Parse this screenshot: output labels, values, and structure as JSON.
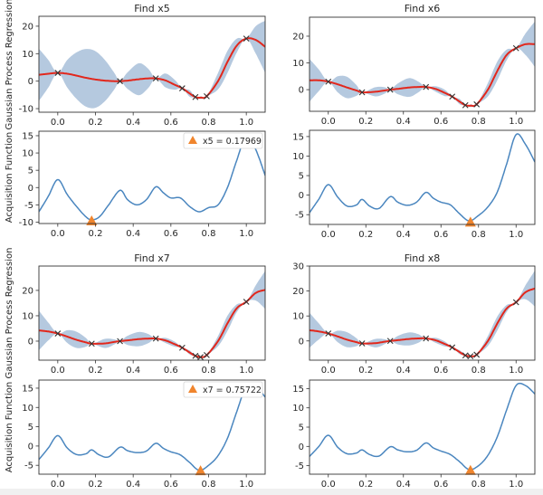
{
  "colors": {
    "band": "#b5c9df",
    "mean": "#e2271c",
    "acq_line": "#4a86bf",
    "marker": "#f0852d",
    "obs": "#333333"
  },
  "chart_data": [
    {
      "type": "line",
      "title": "Find x5",
      "gpr": {
        "ylabel": "Gaussian Process Regression",
        "xlim": [
          -0.1,
          1.1
        ],
        "ylim": [
          -11.3,
          23.6
        ],
        "yticks": [
          "-10",
          "0",
          "10",
          "20"
        ],
        "ytick_values": [
          -10,
          0,
          10,
          20
        ],
        "xticks": [
          "0.0",
          "0.2",
          "0.4",
          "0.6",
          "0.8",
          "1.0"
        ],
        "xtick_values": [
          0,
          0.2,
          0.4,
          0.6,
          0.8,
          1.0
        ],
        "x": [
          -0.1,
          -0.05,
          0,
          0.05,
          0.1,
          0.15,
          0.2,
          0.25,
          0.3,
          0.33,
          0.37,
          0.43,
          0.48,
          0.52,
          0.57,
          0.62,
          0.66,
          0.7,
          0.73,
          0.76,
          0.79,
          0.85,
          0.9,
          0.95,
          1.0,
          1.05,
          1.1
        ],
        "mean": [
          2.3,
          2.7,
          3,
          2.7,
          2,
          1.2,
          0.6,
          0.2,
          0,
          0,
          0.2,
          0.7,
          1,
          1,
          0.3,
          -1.3,
          -2.6,
          -4.5,
          -5.8,
          -6,
          -5.5,
          0,
          7,
          13,
          15.5,
          15,
          12.5
        ],
        "std": [
          9.5,
          5,
          0,
          5,
          8.5,
          10.5,
          10.3,
          7.5,
          3,
          0,
          3,
          5.8,
          3.5,
          0,
          2.5,
          1.8,
          0,
          1.2,
          0,
          0.5,
          0,
          3,
          4,
          2.5,
          0,
          5,
          9.5
        ],
        "observations": {
          "x": [
            0,
            0.33,
            0.52,
            0.66,
            0.73,
            0.79,
            1.0
          ],
          "y": [
            3,
            0,
            1,
            -2.6,
            -5.8,
            -5.5,
            15.5
          ]
        }
      },
      "acq": {
        "ylabel": "Acquisition Function",
        "xlim": [
          -0.1,
          1.1
        ],
        "ylim": [
          -10.4,
          16.3
        ],
        "yticks": [
          "-10",
          "-5",
          "0",
          "5",
          "10",
          "15"
        ],
        "ytick_values": [
          -10,
          -5,
          0,
          5,
          10,
          15
        ],
        "xticks": [
          "0.0",
          "0.2",
          "0.4",
          "0.6",
          "0.8",
          "1.0"
        ],
        "xtick_values": [
          0,
          0.2,
          0.4,
          0.6,
          0.8,
          1.0
        ],
        "x": [
          -0.1,
          -0.05,
          0,
          0.05,
          0.1,
          0.15,
          0.18,
          0.22,
          0.27,
          0.33,
          0.37,
          0.42,
          0.47,
          0.52,
          0.56,
          0.6,
          0.65,
          0.7,
          0.75,
          0.8,
          0.85,
          0.9,
          0.95,
          1.0,
          1.05,
          1.1
        ],
        "y": [
          -7,
          -2.5,
          2.3,
          -2,
          -5.5,
          -8.5,
          -9.3,
          -8.5,
          -5,
          -0.8,
          -3.5,
          -5,
          -3.5,
          0.2,
          -1.5,
          -3,
          -3,
          -5.5,
          -7,
          -5.8,
          -5,
          0,
          8,
          15,
          11,
          3.5
        ],
        "next": {
          "x": 0.17969,
          "y": -9.6
        },
        "legend": "x5 = 0.17969"
      }
    },
    {
      "type": "line",
      "title": "Find x6",
      "gpr": {
        "ylabel": "",
        "xlim": [
          -0.1,
          1.1
        ],
        "ylim": [
          -8.1,
          27.1
        ],
        "yticks": [
          "0",
          "10",
          "20"
        ],
        "ytick_values": [
          0,
          10,
          20
        ],
        "xticks": [
          "0.0",
          "0.2",
          "0.4",
          "0.6",
          "0.8",
          "1.0"
        ],
        "xtick_values": [
          0,
          0.2,
          0.4,
          0.6,
          0.8,
          1.0
        ],
        "x": [
          -0.1,
          -0.05,
          0,
          0.05,
          0.1,
          0.15,
          0.18,
          0.25,
          0.3,
          0.33,
          0.37,
          0.43,
          0.48,
          0.52,
          0.57,
          0.62,
          0.66,
          0.7,
          0.73,
          0.76,
          0.79,
          0.85,
          0.9,
          0.95,
          1.0,
          1.05,
          1.1
        ],
        "mean": [
          3.5,
          3.5,
          3,
          2,
          0.8,
          -0.3,
          -1,
          -0.8,
          -0.3,
          0,
          0.3,
          0.8,
          1,
          1,
          0.3,
          -1.2,
          -2.6,
          -4.5,
          -5.8,
          -6,
          -5.5,
          0,
          7,
          13,
          15.5,
          17,
          17
        ],
        "std": [
          8,
          4,
          0,
          3,
          4,
          2,
          0,
          1.7,
          1.2,
          0,
          2,
          3.5,
          2,
          0,
          1,
          1.2,
          0,
          1,
          0,
          0.5,
          0,
          2.5,
          3.5,
          2,
          0,
          4,
          8.5
        ],
        "observations": {
          "x": [
            0,
            0.18,
            0.33,
            0.52,
            0.66,
            0.73,
            0.79,
            1.0
          ],
          "y": [
            3,
            -1,
            0,
            1,
            -2.6,
            -5.8,
            -5.5,
            15.5
          ]
        }
      },
      "acq": {
        "ylabel": "",
        "xlim": [
          -0.1,
          1.1
        ],
        "ylim": [
          -7.5,
          16.6
        ],
        "yticks": [
          "-5",
          "0",
          "5",
          "10",
          "15"
        ],
        "ytick_values": [
          -5,
          0,
          5,
          10,
          15
        ],
        "xticks": [
          "0.0",
          "0.2",
          "0.4",
          "0.6",
          "0.8",
          "1.0"
        ],
        "xtick_values": [
          0,
          0.2,
          0.4,
          0.6,
          0.8,
          1.0
        ],
        "x": [
          -0.1,
          -0.05,
          0,
          0.05,
          0.1,
          0.15,
          0.18,
          0.22,
          0.27,
          0.33,
          0.37,
          0.42,
          0.47,
          0.52,
          0.56,
          0.6,
          0.65,
          0.7,
          0.75,
          0.8,
          0.85,
          0.9,
          0.95,
          1.0,
          1.05,
          1.1
        ],
        "y": [
          -4.5,
          -1,
          2.7,
          -0.5,
          -2.8,
          -2.5,
          -1.1,
          -2.8,
          -3.4,
          -0.4,
          -1.8,
          -2.6,
          -1.8,
          0.7,
          -0.8,
          -1.8,
          -2.5,
          -4.8,
          -6.6,
          -5.2,
          -3,
          0.8,
          8,
          15.5,
          13,
          8.5
        ],
        "next": {
          "x": 0.757,
          "y": -6.9
        },
        "legend": ""
      }
    },
    {
      "type": "line",
      "title": "Find x7",
      "gpr": {
        "ylabel": "Gaussian Process Regression",
        "xlim": [
          -0.1,
          1.1
        ],
        "ylim": [
          -7.5,
          29.6
        ],
        "yticks": [
          "0",
          "10",
          "20"
        ],
        "ytick_values": [
          0,
          10,
          20
        ],
        "xticks": [
          "0.0",
          "0.2",
          "0.4",
          "0.6",
          "0.8",
          "1.0"
        ],
        "xtick_values": [
          0,
          0.2,
          0.4,
          0.6,
          0.8,
          1.0
        ],
        "x": [
          -0.1,
          -0.05,
          0,
          0.05,
          0.1,
          0.15,
          0.18,
          0.25,
          0.3,
          0.33,
          0.37,
          0.43,
          0.48,
          0.52,
          0.57,
          0.62,
          0.66,
          0.7,
          0.73,
          0.76,
          0.79,
          0.85,
          0.9,
          0.95,
          1.0,
          1.05,
          1.1
        ],
        "mean": [
          4.2,
          3.8,
          3,
          1.8,
          0.5,
          -0.5,
          -1,
          -0.9,
          -0.3,
          0,
          0.3,
          0.8,
          1,
          1,
          0.3,
          -1.2,
          -2.6,
          -4.5,
          -5.8,
          -6.3,
          -5.5,
          0,
          7,
          13,
          15.5,
          19,
          20.2
        ],
        "std": [
          7.8,
          3.5,
          0,
          2.5,
          3.2,
          1.7,
          0,
          1.8,
          1,
          0,
          1.8,
          2.8,
          1.8,
          0,
          1,
          1,
          0,
          0.8,
          0,
          0.3,
          0,
          2,
          3,
          1.5,
          0,
          3,
          7.5
        ],
        "observations": {
          "x": [
            0,
            0.18,
            0.33,
            0.52,
            0.66,
            0.73,
            0.757,
            0.79,
            1.0
          ],
          "y": [
            3,
            -1,
            0,
            1,
            -2.6,
            -5.8,
            -6.3,
            -5.5,
            15.5
          ]
        }
      },
      "acq": {
        "ylabel": "Acquisition Function",
        "xlim": [
          -0.1,
          1.1
        ],
        "ylim": [
          -7.3,
          17.1
        ],
        "yticks": [
          "-5",
          "0",
          "5",
          "10",
          "15"
        ],
        "ytick_values": [
          -5,
          0,
          5,
          10,
          15
        ],
        "xticks": [
          "0.0",
          "0.2",
          "0.4",
          "0.6",
          "0.8",
          "1.0"
        ],
        "xtick_values": [
          0,
          0.2,
          0.4,
          0.6,
          0.8,
          1.0
        ],
        "x": [
          -0.1,
          -0.05,
          0,
          0.05,
          0.1,
          0.15,
          0.18,
          0.22,
          0.27,
          0.33,
          0.37,
          0.42,
          0.47,
          0.52,
          0.56,
          0.6,
          0.65,
          0.7,
          0.75,
          0.8,
          0.85,
          0.9,
          0.95,
          1.0,
          1.05,
          1.1
        ],
        "y": [
          -3.5,
          -0.5,
          2.7,
          -0.5,
          -2.2,
          -2,
          -1,
          -2.3,
          -2.8,
          -0.3,
          -1.2,
          -1.7,
          -1.3,
          0.7,
          -0.6,
          -1.5,
          -2.3,
          -4.3,
          -6.3,
          -5,
          -2.5,
          2,
          9,
          15.5,
          15.5,
          12.7
        ],
        "next": {
          "x": 0.75722,
          "y": -6.4
        },
        "legend": "x7 = 0.75722"
      }
    },
    {
      "type": "line",
      "title": "Find x8",
      "gpr": {
        "ylabel": "",
        "xlim": [
          -0.1,
          1.1
        ],
        "ylim": [
          -7.7,
          30
        ],
        "yticks": [
          "0",
          "10",
          "20",
          "30"
        ],
        "ytick_values": [
          0,
          10,
          20,
          30
        ],
        "xticks": [
          "0.0",
          "0.2",
          "0.4",
          "0.6",
          "0.8",
          "1.0"
        ],
        "xtick_values": [
          0,
          0.2,
          0.4,
          0.6,
          0.8,
          1.0
        ],
        "x": [
          -0.1,
          -0.05,
          0,
          0.05,
          0.1,
          0.15,
          0.18,
          0.25,
          0.3,
          0.33,
          0.37,
          0.43,
          0.48,
          0.52,
          0.57,
          0.62,
          0.66,
          0.7,
          0.73,
          0.757,
          0.79,
          0.85,
          0.9,
          0.95,
          1.0,
          1.05,
          1.1
        ],
        "mean": [
          4.3,
          3.8,
          3,
          1.8,
          0.5,
          -0.5,
          -1,
          -0.9,
          -0.3,
          0,
          0.3,
          0.8,
          1,
          1,
          0.3,
          -1.2,
          -2.6,
          -4.5,
          -5.8,
          -6.1,
          -5.5,
          0,
          7,
          13,
          15.5,
          19.5,
          21
        ],
        "std": [
          7,
          3.2,
          0,
          2.3,
          3,
          1.6,
          0,
          1.7,
          1,
          0,
          1.7,
          2.6,
          1.7,
          0,
          1,
          1,
          0,
          0.8,
          0,
          0,
          0,
          2,
          2.8,
          1.4,
          0,
          2.8,
          7.2
        ],
        "observations": {
          "x": [
            0,
            0.18,
            0.33,
            0.52,
            0.66,
            0.73,
            0.757,
            0.79,
            1.0
          ],
          "y": [
            3,
            -1,
            0,
            1,
            -2.6,
            -5.8,
            -6.1,
            -5.5,
            15.5
          ]
        }
      },
      "acq": {
        "ylabel": "",
        "xlim": [
          -0.1,
          1.1
        ],
        "ylim": [
          -7.2,
          17.2
        ],
        "yticks": [
          "-5",
          "0",
          "5",
          "10",
          "15"
        ],
        "ytick_values": [
          -5,
          0,
          5,
          10,
          15
        ],
        "xticks": [
          "0.0",
          "0.2",
          "0.4",
          "0.6",
          "0.8",
          "1.0"
        ],
        "xtick_values": [
          0,
          0.2,
          0.4,
          0.6,
          0.8,
          1.0
        ],
        "x": [
          -0.1,
          -0.05,
          0,
          0.05,
          0.1,
          0.15,
          0.18,
          0.22,
          0.27,
          0.33,
          0.37,
          0.42,
          0.47,
          0.52,
          0.56,
          0.6,
          0.65,
          0.7,
          0.75,
          0.8,
          0.85,
          0.9,
          0.95,
          1.0,
          1.05,
          1.1
        ],
        "y": [
          -2.6,
          0,
          2.9,
          -0.2,
          -1.9,
          -1.7,
          -0.9,
          -2.1,
          -2.5,
          -0.1,
          -0.9,
          -1.4,
          -1,
          0.9,
          -0.4,
          -1.2,
          -2.1,
          -4,
          -6,
          -5,
          -2.3,
          2.5,
          9.5,
          15.8,
          15.8,
          13.6
        ],
        "next": {
          "x": 0.757,
          "y": -6.2
        },
        "legend": ""
      }
    }
  ]
}
